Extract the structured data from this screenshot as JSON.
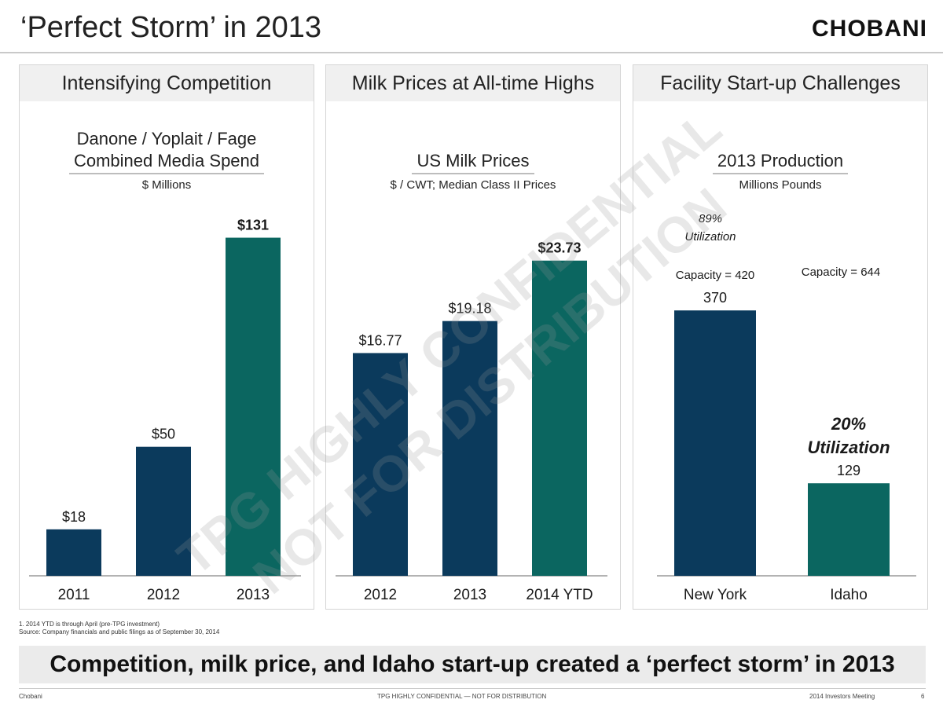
{
  "slide": {
    "title": "‘Perfect Storm’ in 2013",
    "brand": "CHOBANI",
    "footnote1": "1. 2014 YTD is through April (pre-TPG investment)",
    "footnote2": "Source: Company financials and public filings as of September 30, 2014",
    "banner": "Competition, milk price, and Idaho start-up created a ‘perfect storm’ in 2013",
    "footer_left": "Chobani",
    "footer_center": "TPG HIGHLY CONFIDENTIAL — NOT FOR DISTRIBUTION",
    "footer_right": "2014 Investors Meeting",
    "page_number": "6",
    "watermark_line1": "TPG HIGHLY CONFIDENTIAL",
    "watermark_line2": "NOT FOR DISTRIBUTION"
  },
  "panels": [
    {
      "heading": "Intensifying Competition",
      "chart_title_line1": "Danone / Yoplait / Fage",
      "chart_title_line2": "Combined Media Spend",
      "unit": "$ Millions"
    },
    {
      "heading": "Milk Prices at All-time Highs",
      "chart_title_line1": "",
      "chart_title_line2": "US Milk Prices",
      "unit": "$ / CWT; Median Class II Prices"
    },
    {
      "heading": "Facility Start-up Challenges",
      "chart_title_line1": "",
      "chart_title_line2": "2013 Production",
      "unit": "Millions Pounds"
    }
  ],
  "colors": {
    "navy": "#0b3a5c",
    "teal": "#0b6660"
  },
  "chart_data": [
    {
      "type": "bar",
      "title": "Danone / Yoplait / Fage Combined Media Spend",
      "ylabel": "$ Millions",
      "categories": [
        "2011",
        "2012",
        "2013"
      ],
      "values": [
        18,
        50,
        131
      ],
      "labels": [
        "$18",
        "$50",
        "$131"
      ],
      "bold": [
        false,
        false,
        true
      ],
      "colors": [
        "#0b3a5c",
        "#0b3a5c",
        "#0b6660"
      ],
      "ylim": [
        0,
        140
      ]
    },
    {
      "type": "bar",
      "title": "US Milk Prices",
      "ylabel": "$ / CWT; Median Class II Prices",
      "categories": [
        "2012",
        "2013",
        "2014 YTD"
      ],
      "values": [
        16.77,
        19.18,
        23.73
      ],
      "labels": [
        "$16.77",
        "$19.18",
        "$23.73"
      ],
      "bold": [
        false,
        false,
        true
      ],
      "colors": [
        "#0b3a5c",
        "#0b3a5c",
        "#0b6660"
      ],
      "ylim": [
        0,
        27.5
      ]
    },
    {
      "type": "bar",
      "title": "2013 Production",
      "ylabel": "Millions Pounds",
      "categories": [
        "New York",
        "Idaho"
      ],
      "values": [
        370,
        129
      ],
      "labels": [
        "370",
        "129"
      ],
      "bold": [
        false,
        false
      ],
      "colors": [
        "#0b3a5c",
        "#0b6660"
      ],
      "ylim": [
        0,
        460
      ],
      "annotations": [
        {
          "bar": 0,
          "capacity": "Capacity = 420",
          "utilization_pct": "89%",
          "utilization_label": "Utilization"
        },
        {
          "bar": 1,
          "capacity": "Capacity = 644",
          "utilization_pct": "20%",
          "utilization_label": "Utilization"
        }
      ]
    }
  ]
}
